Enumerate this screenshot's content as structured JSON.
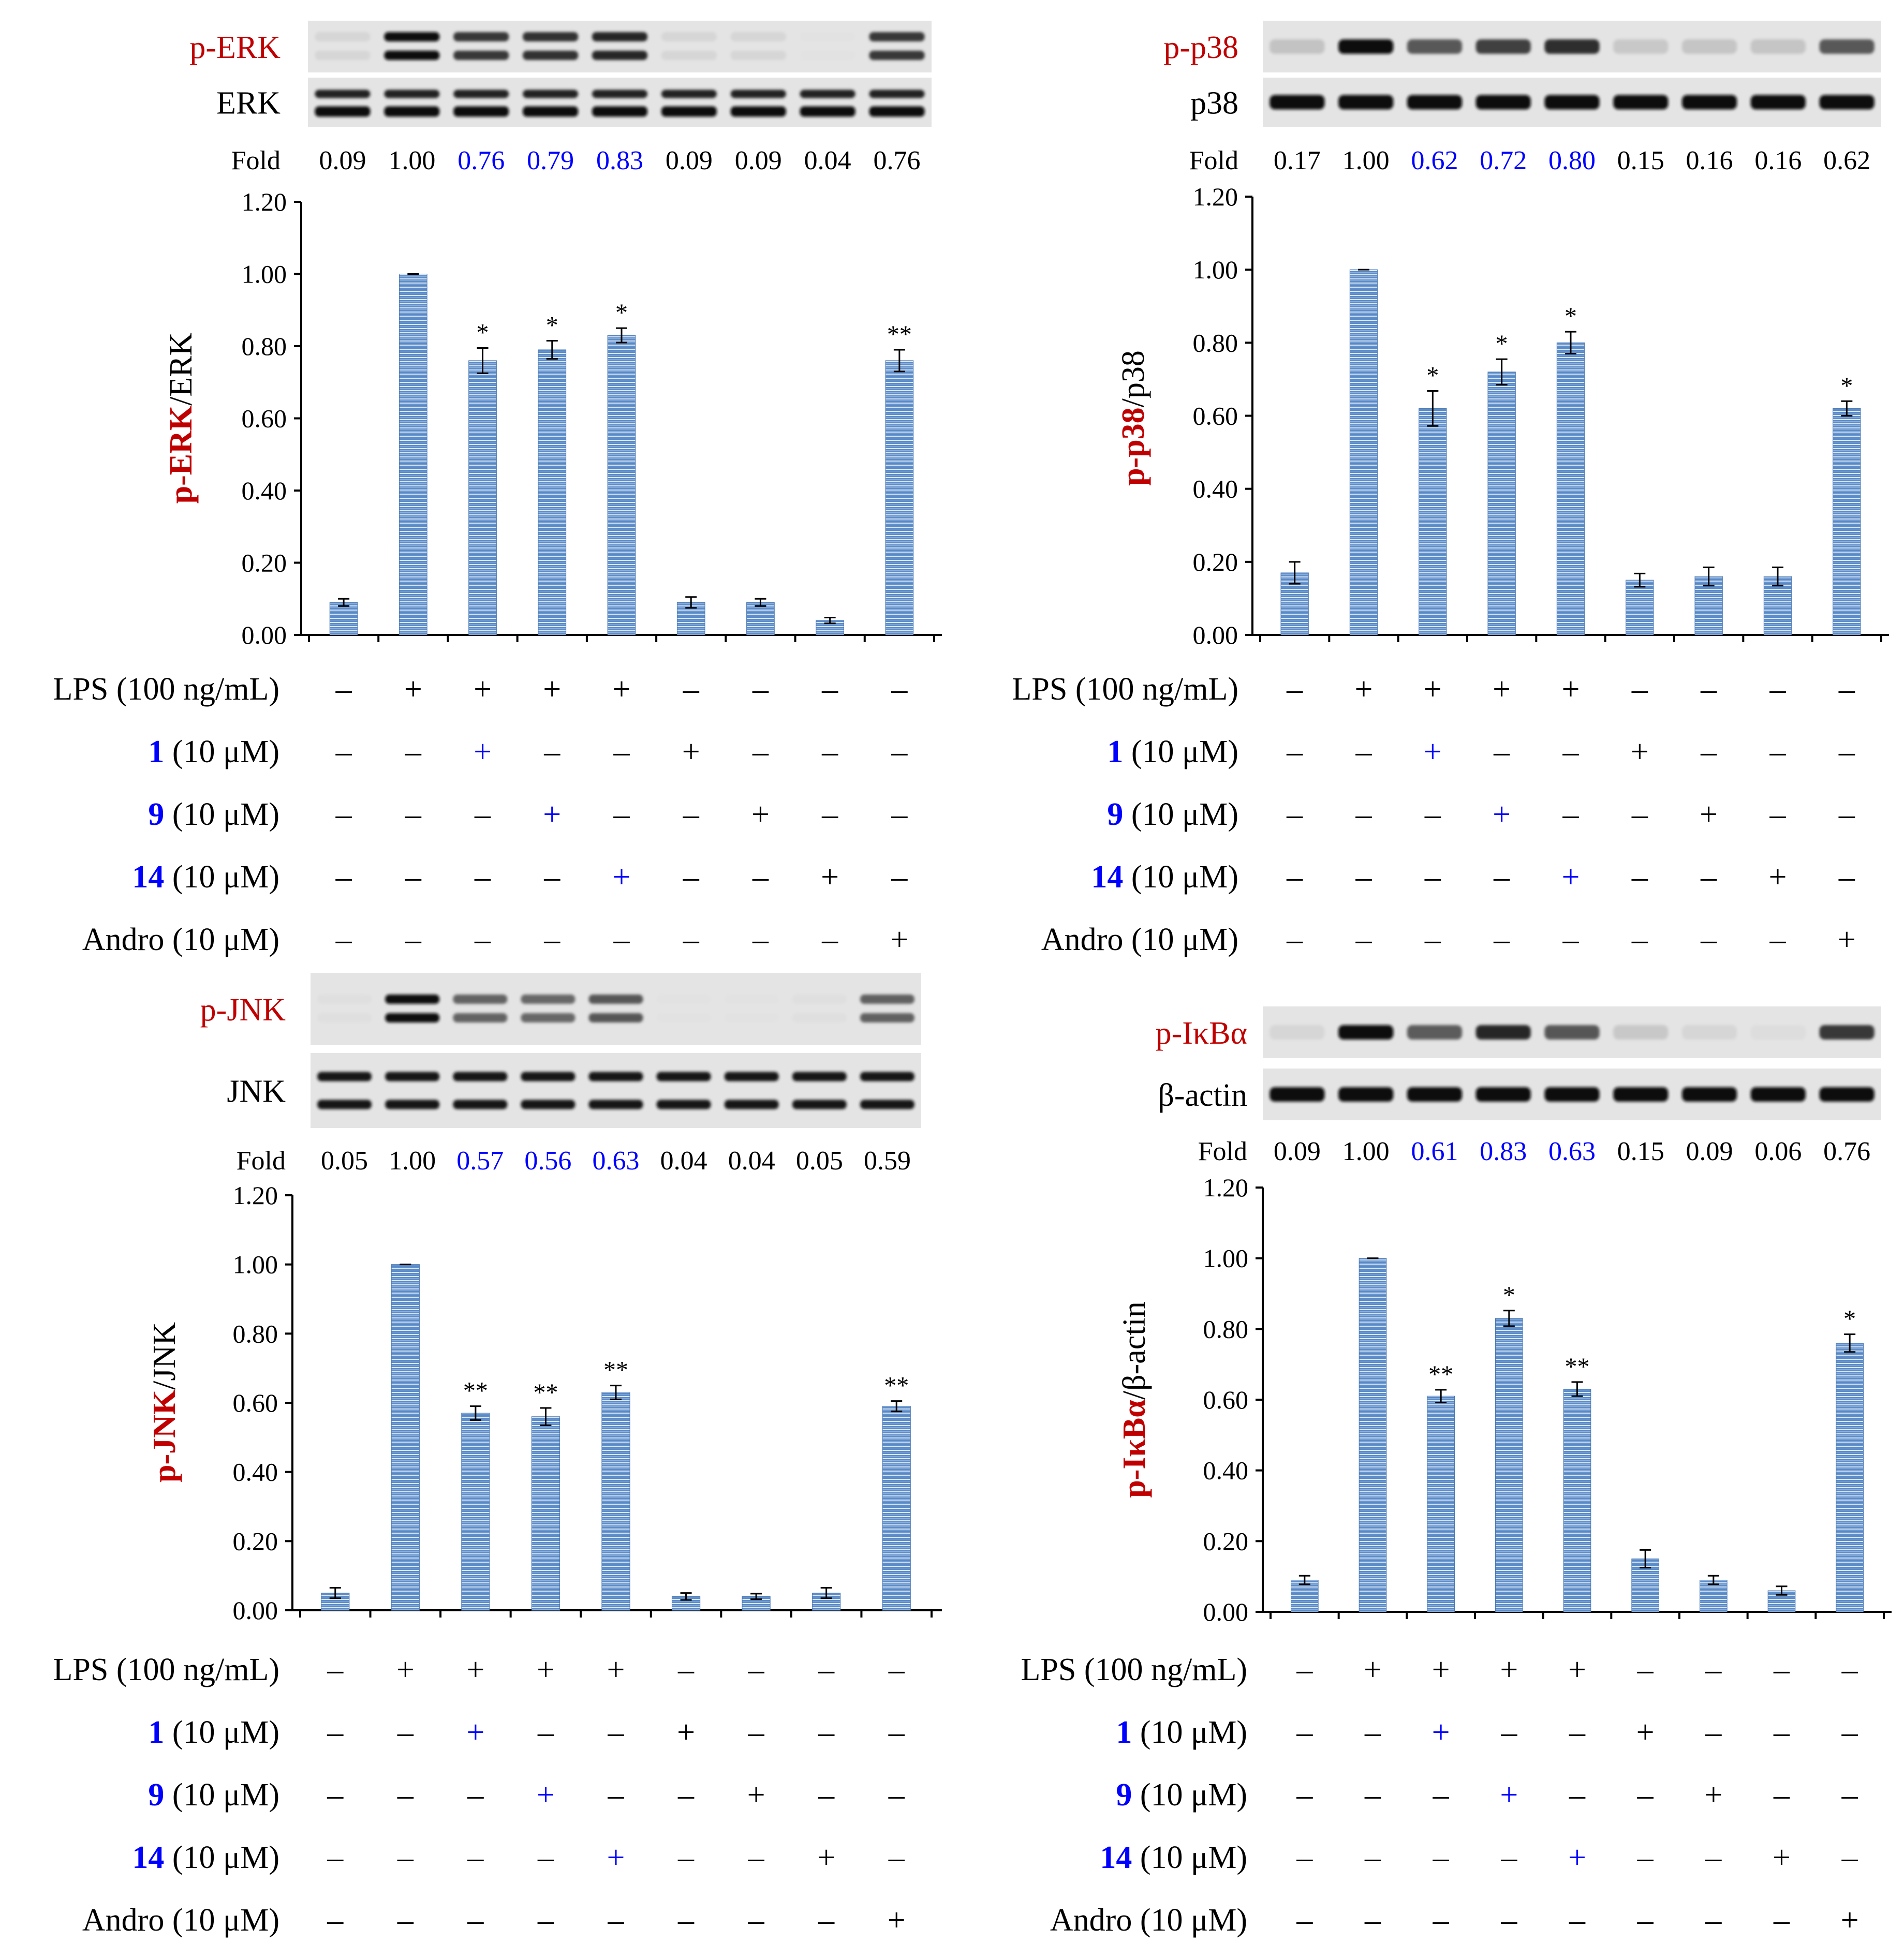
{
  "colors": {
    "bar_fill": "#5b8cc9",
    "bar_line": "#dbe6f4",
    "label_red": "#c00000",
    "label_blue": "#0000ff",
    "text_black": "#000000"
  },
  "fold_label": "Fold",
  "conditions": [
    {
      "key": "lps",
      "bold": "",
      "rest": "LPS (100 ng/mL)",
      "color": "black"
    },
    {
      "key": "c1",
      "bold": "1",
      "rest": " (10 μM)",
      "color": "blue"
    },
    {
      "key": "c9",
      "bold": "9",
      "rest": " (10 μM)",
      "color": "blue"
    },
    {
      "key": "c14",
      "bold": "14",
      "rest": " (10 μM)",
      "color": "blue"
    },
    {
      "key": "andro",
      "bold": "",
      "rest": "Andro (10 μM)",
      "color": "black"
    }
  ],
  "condition_matrix": [
    [
      "–",
      "+",
      "+",
      "+",
      "+",
      "–",
      "–",
      "–",
      "–"
    ],
    [
      "–",
      "–",
      "+",
      "–",
      "–",
      "+",
      "–",
      "–",
      "–"
    ],
    [
      "–",
      "–",
      "–",
      "+",
      "–",
      "–",
      "+",
      "–",
      "–"
    ],
    [
      "–",
      "–",
      "–",
      "–",
      "+",
      "–",
      "–",
      "+",
      "–"
    ],
    [
      "–",
      "–",
      "–",
      "–",
      "–",
      "–",
      "–",
      "–",
      "+"
    ]
  ],
  "blue_plus_cells": [
    [
      1,
      2
    ],
    [
      2,
      3
    ],
    [
      3,
      4
    ]
  ],
  "chart_data": [
    {
      "type": "bar",
      "panel": "p-ERK",
      "blot_labels": [
        "p-ERK",
        "ERK"
      ],
      "ylabel_colored": "p-ERK",
      "ylabel_rest": "/ERK",
      "ylim": [
        0,
        1.2
      ],
      "yticks": [
        "0.00",
        "0.20",
        "0.40",
        "0.60",
        "0.80",
        "1.00",
        "1.20"
      ],
      "values": [
        0.09,
        1.0,
        0.76,
        0.79,
        0.83,
        0.09,
        0.09,
        0.04,
        0.76
      ],
      "errors": [
        0.01,
        0.0,
        0.035,
        0.025,
        0.02,
        0.015,
        0.01,
        0.008,
        0.03
      ],
      "significance": [
        "",
        "",
        "*",
        "*",
        "*",
        "",
        "",
        "",
        "**"
      ],
      "fold": [
        "0.09",
        "1.00",
        "0.76",
        "0.79",
        "0.83",
        "0.09",
        "0.09",
        "0.04",
        "0.76"
      ],
      "fold_blue": [
        false,
        false,
        true,
        true,
        true,
        false,
        false,
        false,
        false
      ],
      "grid": false
    },
    {
      "type": "bar",
      "panel": "p-p38",
      "blot_labels": [
        "p-p38",
        "p38"
      ],
      "ylabel_colored": "p-p38",
      "ylabel_rest": "/p38",
      "ylim": [
        0,
        1.2
      ],
      "yticks": [
        "0.00",
        "0.20",
        "0.40",
        "0.60",
        "0.80",
        "1.00",
        "1.20"
      ],
      "values": [
        0.17,
        1.0,
        0.62,
        0.72,
        0.8,
        0.15,
        0.16,
        0.16,
        0.62
      ],
      "errors": [
        0.03,
        0.0,
        0.048,
        0.035,
        0.03,
        0.018,
        0.025,
        0.025,
        0.02
      ],
      "significance": [
        "",
        "",
        "*",
        "*",
        "*",
        "",
        "",
        "",
        "*"
      ],
      "fold": [
        "0.17",
        "1.00",
        "0.62",
        "0.72",
        "0.80",
        "0.15",
        "0.16",
        "0.16",
        "0.62"
      ],
      "fold_blue": [
        false,
        false,
        true,
        true,
        true,
        false,
        false,
        false,
        false
      ],
      "grid": false
    },
    {
      "type": "bar",
      "panel": "p-JNK",
      "blot_labels": [
        "p-JNK",
        "JNK"
      ],
      "ylabel_colored": "p-JNK",
      "ylabel_rest": "/JNK",
      "ylim": [
        0,
        1.2
      ],
      "yticks": [
        "0.00",
        "0.20",
        "0.40",
        "0.60",
        "0.80",
        "1.00",
        "1.20"
      ],
      "values": [
        0.05,
        1.0,
        0.57,
        0.56,
        0.63,
        0.04,
        0.04,
        0.05,
        0.59
      ],
      "errors": [
        0.015,
        0.0,
        0.02,
        0.025,
        0.02,
        0.01,
        0.008,
        0.015,
        0.015
      ],
      "significance": [
        "",
        "",
        "**",
        "**",
        "**",
        "",
        "",
        "",
        "**"
      ],
      "fold": [
        "0.05",
        "1.00",
        "0.57",
        "0.56",
        "0.63",
        "0.04",
        "0.04",
        "0.05",
        "0.59"
      ],
      "fold_blue": [
        false,
        false,
        true,
        true,
        true,
        false,
        false,
        false,
        false
      ],
      "grid": false
    },
    {
      "type": "bar",
      "panel": "p-IκBα",
      "blot_labels": [
        "p-IκBα",
        "β-actin"
      ],
      "ylabel_colored": "p-IκBα",
      "ylabel_rest": "/β-actin",
      "ylim": [
        0,
        1.2
      ],
      "yticks": [
        "0.00",
        "0.20",
        "0.40",
        "0.60",
        "0.80",
        "1.00",
        "1.20"
      ],
      "values": [
        0.09,
        1.0,
        0.61,
        0.83,
        0.63,
        0.15,
        0.09,
        0.06,
        0.76
      ],
      "errors": [
        0.012,
        0.0,
        0.018,
        0.022,
        0.02,
        0.025,
        0.012,
        0.012,
        0.025
      ],
      "significance": [
        "",
        "",
        "**",
        "*",
        "**",
        "",
        "",
        "",
        "*"
      ],
      "fold": [
        "0.09",
        "1.00",
        "0.61",
        "0.83",
        "0.63",
        "0.15",
        "0.09",
        "0.06",
        "0.76"
      ],
      "fold_blue": [
        false,
        false,
        true,
        true,
        true,
        false,
        false,
        false,
        false
      ],
      "grid": false
    }
  ]
}
